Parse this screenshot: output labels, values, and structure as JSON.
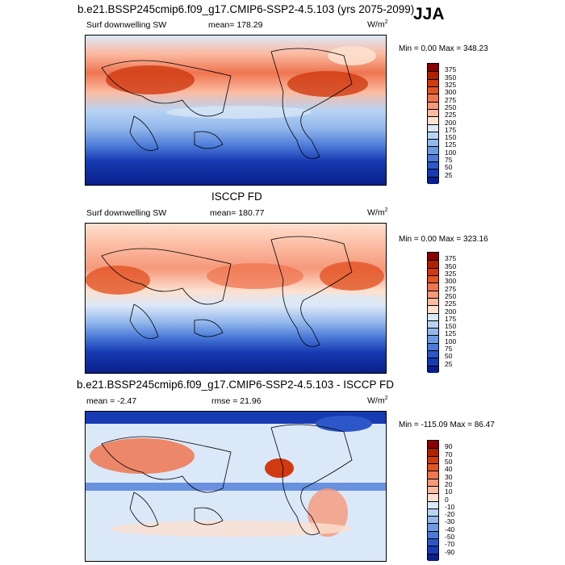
{
  "season": "JJA",
  "panels": [
    {
      "title": "b.e21.BSSP245cmip6.f09_g17.CMIP6-SSP2-4.5.103 (yrs 2075-2099)",
      "left_label": "Surf downwelling SW",
      "center_label": "mean= 178.29",
      "units": "W/m",
      "units_sup": "2",
      "minmax": "Min =   0.00 Max = 348.23",
      "colorbar_labels": [
        "375",
        "350",
        "325",
        "300",
        "275",
        "250",
        "225",
        "200",
        "175",
        "150",
        "125",
        "100",
        "75",
        "50",
        "25"
      ],
      "colorbar_colors": [
        "#8b0000",
        "#b22000",
        "#d03a10",
        "#e25424",
        "#ef7550",
        "#f6987a",
        "#fbbba2",
        "#fde0cf",
        "#dbe8f8",
        "#b8d3f3",
        "#93b8ec",
        "#6d9ae3",
        "#4b7ad8",
        "#2d57c9",
        "#173bb2",
        "#0a1f8c"
      ]
    },
    {
      "title": "ISCCP FD",
      "left_label": "Surf downwelling SW",
      "center_label": "mean= 180.77",
      "units": "W/m",
      "units_sup": "2",
      "minmax": "Min =   0.00 Max = 323.16",
      "colorbar_labels": [
        "375",
        "350",
        "325",
        "300",
        "275",
        "250",
        "225",
        "200",
        "175",
        "150",
        "125",
        "100",
        "75",
        "50",
        "25"
      ],
      "colorbar_colors": [
        "#8b0000",
        "#b22000",
        "#d03a10",
        "#e25424",
        "#ef7550",
        "#f6987a",
        "#fbbba2",
        "#fde0cf",
        "#dbe8f8",
        "#b8d3f3",
        "#93b8ec",
        "#6d9ae3",
        "#4b7ad8",
        "#2d57c9",
        "#173bb2",
        "#0a1f8c"
      ]
    },
    {
      "title": "b.e21.BSSP245cmip6.f09_g17.CMIP6-SSP2-4.5.103 - ISCCP FD",
      "left_label": "mean =  -2.47",
      "center_label": "rmse =  21.96",
      "units": "W/m",
      "units_sup": "2",
      "minmax": "Min = -115.09 Max =  86.47",
      "colorbar_labels": [
        "90",
        "70",
        "50",
        "40",
        "30",
        "20",
        "10",
        "0",
        "-10",
        "-20",
        "-30",
        "-40",
        "-50",
        "-70",
        "-90"
      ],
      "colorbar_colors": [
        "#8b0000",
        "#b22000",
        "#d03a10",
        "#e25424",
        "#ef7550",
        "#f6987a",
        "#fbbba2",
        "#fde0cf",
        "#dbe8f8",
        "#b8d3f3",
        "#93b8ec",
        "#6d9ae3",
        "#4b7ad8",
        "#2d57c9",
        "#173bb2",
        "#0a1f8c"
      ]
    }
  ],
  "chart_data": [
    {
      "type": "heatmap",
      "title": "b.e21.BSSP245cmip6.f09_g17.CMIP6-SSP2-4.5.103 (yrs 2075-2099)",
      "variable": "Surf downwelling SW",
      "mean": 178.29,
      "units": "W/m2",
      "min": 0.0,
      "max": 348.23,
      "levels": [
        25,
        50,
        75,
        100,
        125,
        150,
        175,
        200,
        225,
        250,
        275,
        300,
        325,
        350,
        375
      ]
    },
    {
      "type": "heatmap",
      "title": "ISCCP FD",
      "variable": "Surf downwelling SW",
      "mean": 180.77,
      "units": "W/m2",
      "min": 0.0,
      "max": 323.16,
      "levels": [
        25,
        50,
        75,
        100,
        125,
        150,
        175,
        200,
        225,
        250,
        275,
        300,
        325,
        350,
        375
      ]
    },
    {
      "type": "heatmap",
      "title": "b.e21.BSSP245cmip6.f09_g17.CMIP6-SSP2-4.5.103 - ISCCP FD",
      "mean": -2.47,
      "rmse": 21.96,
      "units": "W/m2",
      "min": -115.09,
      "max": 86.47,
      "levels": [
        -90,
        -70,
        -50,
        -40,
        -30,
        -20,
        -10,
        0,
        10,
        20,
        30,
        40,
        50,
        70,
        90
      ]
    }
  ]
}
